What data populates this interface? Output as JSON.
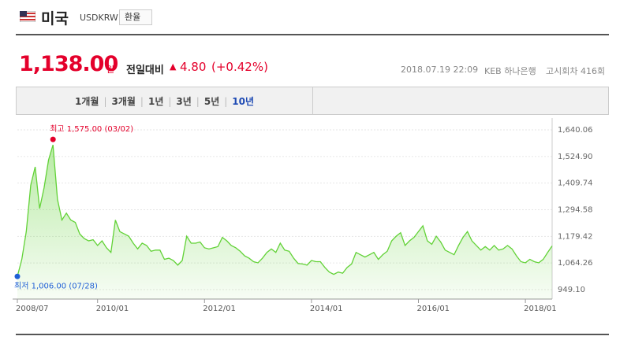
{
  "header": {
    "title": "미국",
    "code": "USDKRW",
    "button": "환율"
  },
  "quote": {
    "price": "1,138.00",
    "unit": "원",
    "change_label": "전일대비",
    "change": "4.80",
    "change_pct": "(+0.42%)",
    "datetime": "2018.07.19 22:09",
    "bank": "KEB 하나은행",
    "round": "고시회차 416회"
  },
  "tabs": [
    "1개월",
    "3개월",
    "1년",
    "3년",
    "5년",
    "10년"
  ],
  "selected_tab": "10년",
  "chart_data": {
    "type": "area",
    "color": "#62d237",
    "grid": true,
    "x": [
      "2008/07",
      "2008/08",
      "2008/09",
      "2008/10",
      "2008/11",
      "2008/12",
      "2009/01",
      "2009/02",
      "2009/03",
      "2009/04",
      "2009/05",
      "2009/06",
      "2009/07",
      "2009/08",
      "2009/09",
      "2009/10",
      "2009/11",
      "2009/12",
      "2010/01",
      "2010/02",
      "2010/03",
      "2010/04",
      "2010/05",
      "2010/06",
      "2010/07",
      "2010/08",
      "2010/09",
      "2010/10",
      "2010/11",
      "2010/12",
      "2011/01",
      "2011/02",
      "2011/03",
      "2011/04",
      "2011/05",
      "2011/06",
      "2011/07",
      "2011/08",
      "2011/09",
      "2011/10",
      "2011/11",
      "2011/12",
      "2012/01",
      "2012/02",
      "2012/03",
      "2012/04",
      "2012/05",
      "2012/06",
      "2012/07",
      "2012/08",
      "2012/09",
      "2012/10",
      "2012/11",
      "2012/12",
      "2013/01",
      "2013/02",
      "2013/03",
      "2013/04",
      "2013/05",
      "2013/06",
      "2013/07",
      "2013/08",
      "2013/09",
      "2013/10",
      "2013/11",
      "2013/12",
      "2014/01",
      "2014/02",
      "2014/03",
      "2014/04",
      "2014/05",
      "2014/06",
      "2014/07",
      "2014/08",
      "2014/09",
      "2014/10",
      "2014/11",
      "2014/12",
      "2015/01",
      "2015/02",
      "2015/03",
      "2015/04",
      "2015/05",
      "2015/06",
      "2015/07",
      "2015/08",
      "2015/09",
      "2015/10",
      "2015/11",
      "2015/12",
      "2016/01",
      "2016/02",
      "2016/03",
      "2016/04",
      "2016/05",
      "2016/06",
      "2016/07",
      "2016/08",
      "2016/09",
      "2016/10",
      "2016/11",
      "2016/12",
      "2017/01",
      "2017/02",
      "2017/03",
      "2017/04",
      "2017/05",
      "2017/06",
      "2017/07",
      "2017/08",
      "2017/09",
      "2017/10",
      "2017/11",
      "2017/12",
      "2018/01",
      "2018/02",
      "2018/03",
      "2018/04",
      "2018/05",
      "2018/06",
      "2018/07"
    ],
    "values": [
      1006,
      1080,
      1200,
      1400,
      1480,
      1300,
      1390,
      1510,
      1575,
      1340,
      1250,
      1280,
      1250,
      1240,
      1190,
      1170,
      1160,
      1165,
      1140,
      1160,
      1130,
      1110,
      1250,
      1200,
      1190,
      1180,
      1150,
      1125,
      1150,
      1140,
      1115,
      1120,
      1120,
      1080,
      1085,
      1075,
      1055,
      1075,
      1180,
      1150,
      1150,
      1155,
      1130,
      1125,
      1130,
      1135,
      1175,
      1160,
      1140,
      1130,
      1115,
      1095,
      1085,
      1070,
      1065,
      1085,
      1110,
      1125,
      1110,
      1150,
      1120,
      1115,
      1085,
      1062,
      1060,
      1055,
      1075,
      1070,
      1070,
      1045,
      1025,
      1015,
      1025,
      1020,
      1045,
      1060,
      1110,
      1100,
      1090,
      1100,
      1110,
      1080,
      1100,
      1115,
      1160,
      1180,
      1195,
      1140,
      1160,
      1175,
      1200,
      1225,
      1160,
      1145,
      1180,
      1155,
      1120,
      1110,
      1100,
      1140,
      1175,
      1200,
      1160,
      1140,
      1120,
      1135,
      1120,
      1140,
      1120,
      1125,
      1140,
      1125,
      1095,
      1070,
      1065,
      1080,
      1070,
      1065,
      1080,
      1110,
      1138
    ],
    "xticks": [
      "2008/07",
      "2010/01",
      "2012/01",
      "2014/01",
      "2016/01",
      "2018/01"
    ],
    "ylim": [
      949.1,
      1640.06
    ],
    "yticks": [
      {
        "value": 949.1,
        "label": "949.10"
      },
      {
        "value": 1064.26,
        "label": "1,064.26"
      },
      {
        "value": 1179.42,
        "label": "1,179.42"
      },
      {
        "value": 1294.58,
        "label": "1,294.58"
      },
      {
        "value": 1409.74,
        "label": "1,409.74"
      },
      {
        "value": 1524.9,
        "label": "1,524.90"
      },
      {
        "value": 1640.06,
        "label": "1,640.06"
      }
    ],
    "annotations": [
      {
        "text": "최고 1,575.00 (03/02)",
        "value": 1575,
        "color": "#e4002b"
      },
      {
        "text": "최저 1,006.00 (07/28)",
        "value": 1006,
        "color": "#1f5fd6"
      }
    ]
  }
}
